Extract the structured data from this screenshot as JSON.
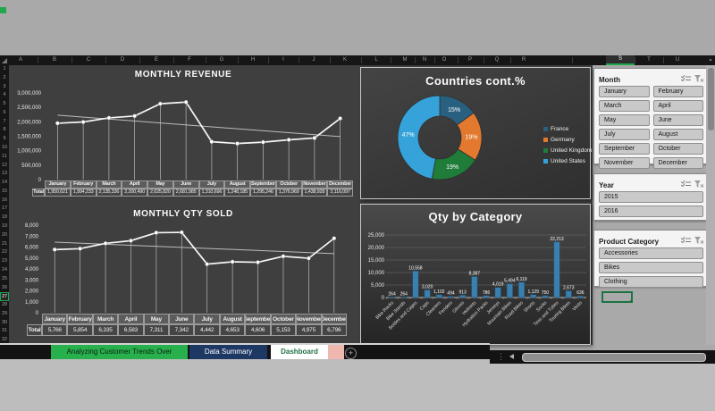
{
  "app": {
    "columns": [
      "A",
      "B",
      "C",
      "D",
      "E",
      "F",
      "G",
      "H",
      "I",
      "J",
      "K",
      "L",
      "M",
      "N",
      "O",
      "P",
      "Q",
      "R",
      "S",
      "T",
      "U"
    ],
    "selected_column": "S",
    "rows": [
      "1",
      "2",
      "3",
      "4",
      "5",
      "6",
      "7",
      "8",
      "9",
      "10",
      "11",
      "12",
      "13",
      "14",
      "15",
      "16",
      "17",
      "18",
      "19",
      "20",
      "21",
      "22",
      "23",
      "24",
      "25",
      "26",
      "27",
      "28",
      "29",
      "30",
      "31",
      "32"
    ],
    "selected_row": "27",
    "accent_color": "#1fa84d",
    "dashboard_bg": "#3f3f3f"
  },
  "chart_data": [
    {
      "type": "line",
      "title": "MONTHLY REVENUE",
      "categories": [
        "January",
        "February",
        "March",
        "April",
        "May",
        "June",
        "July",
        "August",
        "September",
        "October",
        "November",
        "December"
      ],
      "totals_label": "Total",
      "totals": [
        "1,950,621",
        "1,994,233",
        "2,135,336",
        "2,200,490",
        "2,625,820",
        "2,681,985",
        "1,310,696",
        "1,248,185",
        "1,295,246",
        "1,376,969",
        "1,438,928",
        "2,116,097"
      ],
      "y_ticks": [
        "3,000,000",
        "2,500,000",
        "2,000,000",
        "1,500,000",
        "1,000,000",
        "500,000",
        "0"
      ],
      "ylim": [
        0,
        3000000
      ],
      "trendline": [
        2230000,
        1490000
      ],
      "series_color": "#f7f7f7"
    },
    {
      "type": "donut",
      "title": "Countries cont.%",
      "slices": [
        {
          "label": "France",
          "value": 15,
          "display": "15%",
          "color": "#2a607f"
        },
        {
          "label": "Germany",
          "value": 19,
          "display": "19%",
          "color": "#e2792e"
        },
        {
          "label": "United Kingdom",
          "value": 19,
          "display": "19%",
          "color": "#1f7c39"
        },
        {
          "label": "United States",
          "value": 47,
          "display": "47%",
          "color": "#35a3da"
        }
      ],
      "legend_position": "right"
    },
    {
      "type": "line",
      "title": "MONTHLY QTY SOLD",
      "categories": [
        "January",
        "February",
        "March",
        "April",
        "May",
        "June",
        "July",
        "August",
        "September",
        "October",
        "November",
        "December"
      ],
      "totals_label": "Total",
      "totals": [
        "5,766",
        "5,854",
        "6,335",
        "6,583",
        "7,311",
        "7,342",
        "4,442",
        "4,653",
        "4,606",
        "5,153",
        "4,975",
        "6,796"
      ],
      "y_ticks": [
        "8,000",
        "7,000",
        "6,000",
        "5,000",
        "4,000",
        "3,000",
        "2,000",
        "1,000",
        "0"
      ],
      "ylim": [
        0,
        8000
      ],
      "trendline": [
        6450,
        5400
      ],
      "series_color": "#f7f7f7"
    },
    {
      "type": "bar",
      "title": "Qty by Category",
      "categories": [
        "Bike Racks",
        "Bike Stands",
        "Bottles and Cages",
        "Caps",
        "Cleaners",
        "Fenders",
        "Gloves",
        "Helmets",
        "Hydration Packs",
        "Jerseys",
        "Mountain Bikes",
        "Road Bikes",
        "Shorts",
        "Socks",
        "Tires and Tubes",
        "Touring Bikes",
        "Vests"
      ],
      "labels": [
        "264",
        "264",
        "10,558",
        "3,020",
        "1,102",
        "494",
        "913",
        "8,387",
        "786",
        "4,019",
        "5,494",
        "6,119",
        "1,129",
        "750",
        "22,213",
        "2,673",
        "636"
      ],
      "y_ticks": [
        "25,000",
        "20,000",
        "15,000",
        "10,000",
        "5,000",
        "0"
      ],
      "ylim": [
        0,
        25000
      ],
      "bar_color": "#3a7fad"
    }
  ],
  "slicers": {
    "header_icons": [
      "multi-select",
      "clear-filter"
    ],
    "month": {
      "title": "Month",
      "items": [
        "January",
        "February",
        "March",
        "April",
        "May",
        "June",
        "July",
        "August",
        "September",
        "October",
        "November",
        "December"
      ]
    },
    "year": {
      "title": "Year",
      "items": [
        "2015",
        "2016"
      ]
    },
    "category": {
      "title": "Product Category",
      "items": [
        "Accessories",
        "Bikes",
        "Clothing"
      ]
    }
  },
  "sheet_tabs": {
    "tabs": [
      {
        "label": "Analyzing Customer Trends Over",
        "bg": "#27b04c",
        "fg": "#0b2012",
        "active": false
      },
      {
        "label": "Data Summary",
        "bg": "#1e3864",
        "fg": "#ffffff",
        "active": false
      },
      {
        "label": "Dashboard",
        "bg": "#ffffff",
        "fg": "#1e7145",
        "active": true,
        "accent": "#efb7b0"
      }
    ],
    "add_button": "+"
  }
}
